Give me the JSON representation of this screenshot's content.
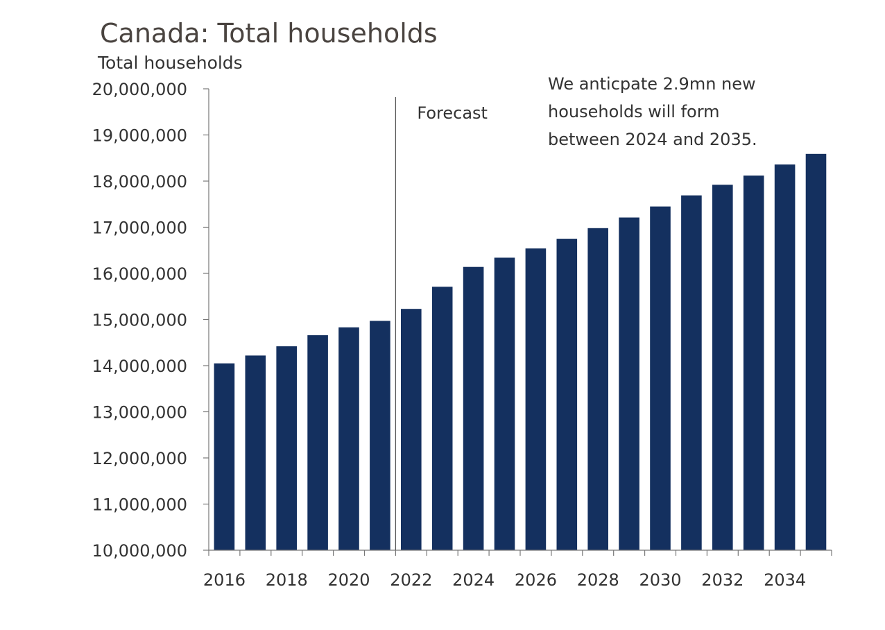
{
  "chart_data": {
    "type": "bar",
    "title": "Canada: Total households",
    "ylabel": "Total households",
    "xlabel": "",
    "categories": [
      "2016",
      "2017",
      "2018",
      "2019",
      "2020",
      "2021",
      "2022",
      "2023",
      "2024",
      "2025",
      "2026",
      "2027",
      "2028",
      "2029",
      "2030",
      "2031",
      "2032",
      "2033",
      "2034",
      "2035"
    ],
    "values": [
      14050000,
      14220000,
      14420000,
      14660000,
      14830000,
      14970000,
      15230000,
      15710000,
      16140000,
      16340000,
      16540000,
      16750000,
      16980000,
      17210000,
      17450000,
      17690000,
      17920000,
      18120000,
      18360000,
      18590000
    ],
    "x_tick_labels": [
      "2016",
      "2018",
      "2020",
      "2022",
      "2024",
      "2026",
      "2028",
      "2030",
      "2032",
      "2034"
    ],
    "y_tick_labels": [
      "10,000,000",
      "11,000,000",
      "12,000,000",
      "13,000,000",
      "14,000,000",
      "15,000,000",
      "16,000,000",
      "17,000,000",
      "18,000,000",
      "19,000,000",
      "20,000,000"
    ],
    "y_ticks": [
      10000000,
      11000000,
      12000000,
      13000000,
      14000000,
      15000000,
      16000000,
      17000000,
      18000000,
      19000000,
      20000000
    ],
    "ylim": [
      10000000,
      20000000
    ],
    "grid": false,
    "bar_color": "#14305f",
    "forecast_divider_after": "2021",
    "annotations": {
      "forecast_label": "Forecast",
      "note_lines": [
        "We anticpate 2.9mn new",
        "households will form",
        "between 2024 and 2035."
      ]
    }
  }
}
